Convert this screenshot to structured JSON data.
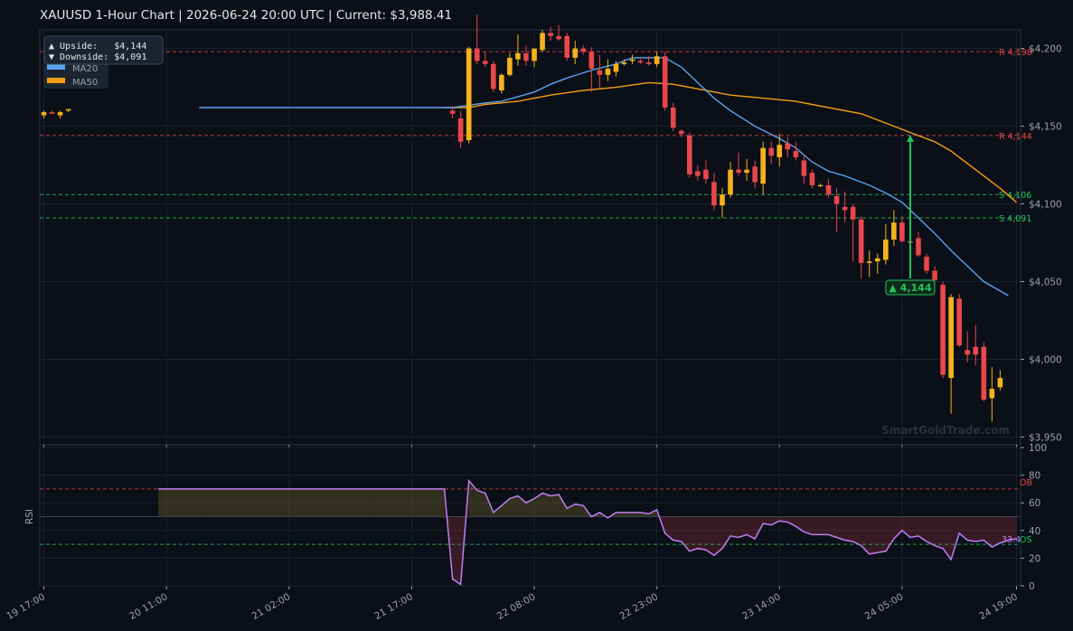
{
  "title": "XAUUSD  1-Hour Chart  |  2026-06-24 20:00 UTC  |  Current: $3,988.41",
  "watermark": "SmartGoldTrade.com",
  "colors": {
    "background": "#0b0f17",
    "bull": "#f5b21b",
    "bear": "#e8474c",
    "ma20": "#5aa2ef",
    "ma50": "#f59e16",
    "resistance": "#e0474c",
    "support": "#22c55e",
    "rsi": "#c07ef2",
    "grid": "#1b2230"
  },
  "info_box": {
    "upside": "▲ Upside:   $4,144",
    "downside": "▼ Downside: $4,091",
    "ma20_label": "MA20",
    "ma50_label": "MA50"
  },
  "annotation": "▲ 4,144",
  "chart_data": [
    {
      "type": "candlestick",
      "title": "XAUUSD  1-Hour Chart  |  2026-06-24 20:00 UTC  |  Current: $3,988.41",
      "ylim": [
        3945,
        4212
      ],
      "yticks": [
        3950,
        4000,
        4050,
        4100,
        4150,
        4200
      ],
      "ytick_labels": [
        "$3,950",
        "$4,000",
        "$4,050",
        "$4,100",
        "$4,150",
        "$4,200"
      ],
      "xlim": [
        -0.5,
        119.5
      ],
      "xticks": [
        0,
        15,
        30,
        45,
        60,
        75,
        90,
        105,
        119
      ],
      "xtick_labels": [
        "19 17:00",
        "20 11:00",
        "21 02:00",
        "21 17:00",
        "22 08:00",
        "22 23:00",
        "23 14:00",
        "24 05:00",
        "24 19:00"
      ],
      "levels": [
        {
          "kind": "resistance",
          "label": "R 4,198",
          "value": 4198
        },
        {
          "kind": "resistance",
          "label": "R 4,144",
          "value": 4144
        },
        {
          "kind": "support",
          "label": "S 4,106",
          "value": 4106
        },
        {
          "kind": "support",
          "label": "S 4,091",
          "value": 4091
        }
      ],
      "candles": [
        {
          "i": 0,
          "o": 4157,
          "h": 4160,
          "l": 4155,
          "c": 4159
        },
        {
          "i": 1,
          "o": 4159,
          "h": 4160,
          "l": 4158,
          "c": 4158
        },
        {
          "i": 2,
          "o": 4157,
          "h": 4160,
          "l": 4155,
          "c": 4159
        },
        {
          "i": 3,
          "o": 4160,
          "h": 4161,
          "l": 4159,
          "c": 4161
        },
        {
          "i": 50,
          "o": 4160,
          "h": 4163,
          "l": 4155,
          "c": 4158
        },
        {
          "i": 51,
          "o": 4155,
          "h": 4160,
          "l": 4136,
          "c": 4140
        },
        {
          "i": 52,
          "o": 4141,
          "h": 4201,
          "l": 4139,
          "c": 4200
        },
        {
          "i": 53,
          "o": 4200,
          "h": 4222,
          "l": 4190,
          "c": 4192
        },
        {
          "i": 54,
          "o": 4192,
          "h": 4198,
          "l": 4188,
          "c": 4190
        },
        {
          "i": 55,
          "o": 4190,
          "h": 4192,
          "l": 4172,
          "c": 4174
        },
        {
          "i": 56,
          "o": 4173,
          "h": 4184,
          "l": 4171,
          "c": 4183
        },
        {
          "i": 57,
          "o": 4183,
          "h": 4197,
          "l": 4182,
          "c": 4194
        },
        {
          "i": 58,
          "o": 4193,
          "h": 4209,
          "l": 4189,
          "c": 4197
        },
        {
          "i": 59,
          "o": 4197,
          "h": 4202,
          "l": 4189,
          "c": 4192
        },
        {
          "i": 60,
          "o": 4192,
          "h": 4200,
          "l": 4188,
          "c": 4200
        },
        {
          "i": 61,
          "o": 4199,
          "h": 4212,
          "l": 4198,
          "c": 4210
        },
        {
          "i": 62,
          "o": 4210,
          "h": 4214,
          "l": 4205,
          "c": 4208
        },
        {
          "i": 63,
          "o": 4208,
          "h": 4215,
          "l": 4205,
          "c": 4206
        },
        {
          "i": 64,
          "o": 4208,
          "h": 4210,
          "l": 4192,
          "c": 4194
        },
        {
          "i": 65,
          "o": 4194,
          "h": 4205,
          "l": 4190,
          "c": 4200
        },
        {
          "i": 66,
          "o": 4200,
          "h": 4202,
          "l": 4196,
          "c": 4198
        },
        {
          "i": 67,
          "o": 4198,
          "h": 4201,
          "l": 4172,
          "c": 4187
        },
        {
          "i": 68,
          "o": 4186,
          "h": 4196,
          "l": 4175,
          "c": 4183
        },
        {
          "i": 69,
          "o": 4183,
          "h": 4193,
          "l": 4179,
          "c": 4187
        },
        {
          "i": 70,
          "o": 4185,
          "h": 4192,
          "l": 4182,
          "c": 4190
        },
        {
          "i": 71,
          "o": 4190,
          "h": 4193,
          "l": 4189,
          "c": 4191
        },
        {
          "i": 72,
          "o": 4192,
          "h": 4196,
          "l": 4190,
          "c": 4193
        },
        {
          "i": 73,
          "o": 4192,
          "h": 4193,
          "l": 4190,
          "c": 4191
        },
        {
          "i": 74,
          "o": 4191,
          "h": 4195,
          "l": 4189,
          "c": 4190
        },
        {
          "i": 75,
          "o": 4190,
          "h": 4198,
          "l": 4188,
          "c": 4195
        },
        {
          "i": 76,
          "o": 4195,
          "h": 4198,
          "l": 4160,
          "c": 4162
        },
        {
          "i": 77,
          "o": 4162,
          "h": 4165,
          "l": 4147,
          "c": 4149
        },
        {
          "i": 78,
          "o": 4147,
          "h": 4148,
          "l": 4143,
          "c": 4145
        },
        {
          "i": 79,
          "o": 4144,
          "h": 4146,
          "l": 4117,
          "c": 4119
        },
        {
          "i": 80,
          "o": 4121,
          "h": 4125,
          "l": 4115,
          "c": 4118
        },
        {
          "i": 81,
          "o": 4122,
          "h": 4128,
          "l": 4113,
          "c": 4116
        },
        {
          "i": 82,
          "o": 4114,
          "h": 4120,
          "l": 4096,
          "c": 4099
        },
        {
          "i": 83,
          "o": 4099,
          "h": 4110,
          "l": 4091,
          "c": 4106
        },
        {
          "i": 84,
          "o": 4106,
          "h": 4127,
          "l": 4104,
          "c": 4122
        },
        {
          "i": 85,
          "o": 4122,
          "h": 4133,
          "l": 4118,
          "c": 4120
        },
        {
          "i": 86,
          "o": 4120,
          "h": 4129,
          "l": 4115,
          "c": 4122
        },
        {
          "i": 87,
          "o": 4124,
          "h": 4128,
          "l": 4110,
          "c": 4114
        },
        {
          "i": 88,
          "o": 4113,
          "h": 4140,
          "l": 4106,
          "c": 4136
        },
        {
          "i": 89,
          "o": 4136,
          "h": 4140,
          "l": 4126,
          "c": 4131
        },
        {
          "i": 90,
          "o": 4130,
          "h": 4145,
          "l": 4124,
          "c": 4138
        },
        {
          "i": 91,
          "o": 4139,
          "h": 4143,
          "l": 4130,
          "c": 4135
        },
        {
          "i": 92,
          "o": 4134,
          "h": 4140,
          "l": 4128,
          "c": 4130
        },
        {
          "i": 93,
          "o": 4128,
          "h": 4132,
          "l": 4113,
          "c": 4118
        },
        {
          "i": 94,
          "o": 4120,
          "h": 4122,
          "l": 4110,
          "c": 4112
        },
        {
          "i": 95,
          "o": 4112,
          "h": 4113,
          "l": 4111,
          "c": 4112
        },
        {
          "i": 96,
          "o": 4112,
          "h": 4116,
          "l": 4104,
          "c": 4106
        },
        {
          "i": 97,
          "o": 4105,
          "h": 4110,
          "l": 4082,
          "c": 4100
        },
        {
          "i": 98,
          "o": 4098,
          "h": 4108,
          "l": 4088,
          "c": 4096
        },
        {
          "i": 99,
          "o": 4098,
          "h": 4100,
          "l": 4063,
          "c": 4090
        },
        {
          "i": 100,
          "o": 4090,
          "h": 4092,
          "l": 4052,
          "c": 4062
        },
        {
          "i": 101,
          "o": 4062,
          "h": 4070,
          "l": 4053,
          "c": 4063
        },
        {
          "i": 102,
          "o": 4063,
          "h": 4068,
          "l": 4055,
          "c": 4065
        },
        {
          "i": 103,
          "o": 4064,
          "h": 4087,
          "l": 4061,
          "c": 4077
        },
        {
          "i": 104,
          "o": 4077,
          "h": 4096,
          "l": 4073,
          "c": 4088
        },
        {
          "i": 105,
          "o": 4088,
          "h": 4092,
          "l": 4075,
          "c": 4076
        },
        {
          "i": 106,
          "o": 4076,
          "h": 4078,
          "l": 4074,
          "c": 4075
        },
        {
          "i": 107,
          "o": 4078,
          "h": 4082,
          "l": 4066,
          "c": 4067
        },
        {
          "i": 108,
          "o": 4066,
          "h": 4068,
          "l": 4055,
          "c": 4057
        },
        {
          "i": 109,
          "o": 4057,
          "h": 4060,
          "l": 4050,
          "c": 4051
        },
        {
          "i": 110,
          "o": 4048,
          "h": 4050,
          "l": 3988,
          "c": 3990
        },
        {
          "i": 111,
          "o": 3988,
          "h": 4042,
          "l": 3965,
          "c": 4040
        },
        {
          "i": 112,
          "o": 4039,
          "h": 4042,
          "l": 4008,
          "c": 4009
        },
        {
          "i": 113,
          "o": 4006,
          "h": 4018,
          "l": 3998,
          "c": 4003
        },
        {
          "i": 114,
          "o": 4008,
          "h": 4022,
          "l": 3996,
          "c": 4003
        },
        {
          "i": 115,
          "o": 4008,
          "h": 4011,
          "l": 3973,
          "c": 3974
        },
        {
          "i": 116,
          "o": 3975,
          "h": 3995,
          "l": 3960,
          "c": 3981
        },
        {
          "i": 117,
          "o": 3982,
          "h": 3993,
          "l": 3980,
          "c": 3988
        }
      ],
      "ma20": {
        "name": "MA20",
        "points": [
          [
            19,
            4162
          ],
          [
            22,
            4162
          ],
          [
            35,
            4162
          ],
          [
            50,
            4162
          ],
          [
            54,
            4165
          ],
          [
            56,
            4166
          ],
          [
            60,
            4172
          ],
          [
            62,
            4177
          ],
          [
            64,
            4181
          ],
          [
            67,
            4186
          ],
          [
            70,
            4190
          ],
          [
            72,
            4194
          ],
          [
            76,
            4194
          ],
          [
            78,
            4188
          ],
          [
            80,
            4178
          ],
          [
            82,
            4168
          ],
          [
            84,
            4160
          ],
          [
            87,
            4150
          ],
          [
            90,
            4142
          ],
          [
            92,
            4136
          ],
          [
            94,
            4127
          ],
          [
            96,
            4121
          ],
          [
            98,
            4118
          ],
          [
            99,
            4116
          ],
          [
            101,
            4112
          ],
          [
            103,
            4107
          ],
          [
            105,
            4101
          ],
          [
            107,
            4091
          ],
          [
            109,
            4081
          ],
          [
            111,
            4070
          ],
          [
            113,
            4060
          ],
          [
            115,
            4050
          ],
          [
            118,
            4041
          ]
        ]
      },
      "ma50": {
        "name": "MA50",
        "points": [
          [
            49,
            4162
          ],
          [
            52,
            4162
          ],
          [
            54,
            4164
          ],
          [
            58,
            4166
          ],
          [
            62,
            4170
          ],
          [
            66,
            4173
          ],
          [
            70,
            4175
          ],
          [
            74,
            4178
          ],
          [
            77,
            4177
          ],
          [
            80,
            4174
          ],
          [
            84,
            4170
          ],
          [
            88,
            4168
          ],
          [
            92,
            4166
          ],
          [
            96,
            4162
          ],
          [
            100,
            4158
          ],
          [
            103,
            4152
          ],
          [
            106,
            4146
          ],
          [
            109,
            4140
          ],
          [
            111,
            4134
          ],
          [
            113,
            4126
          ],
          [
            115,
            4118
          ],
          [
            117,
            4110
          ],
          [
            119,
            4101
          ]
        ]
      },
      "arrow": {
        "x": 106,
        "from": 4052,
        "to": 4144,
        "label": "▲ 4,144"
      }
    },
    {
      "type": "line",
      "ylabel": "RSI",
      "ylim": [
        0,
        100
      ],
      "yticks": [
        0,
        20,
        40,
        60,
        80,
        100
      ],
      "ytick_labels": [
        "0",
        "20",
        "40",
        "60",
        "80",
        "100"
      ],
      "overbought": 70,
      "oversold": 30,
      "midline": 50,
      "ob_label": "OB",
      "os_label": "OS",
      "last_label": "33.4",
      "series": [
        {
          "points": [
            [
              14,
              70
            ],
            [
              20,
              70
            ],
            [
              30,
              70
            ],
            [
              40,
              70
            ],
            [
              49,
              70
            ],
            [
              50,
              5
            ],
            [
              51,
              1
            ],
            [
              52,
              76
            ],
            [
              53,
              69
            ],
            [
              54,
              67
            ],
            [
              55,
              53
            ],
            [
              56,
              58
            ],
            [
              57,
              63
            ],
            [
              58,
              65
            ],
            [
              59,
              60
            ],
            [
              60,
              63
            ],
            [
              61,
              67
            ],
            [
              62,
              65
            ],
            [
              63,
              66
            ],
            [
              64,
              56
            ],
            [
              65,
              59
            ],
            [
              66,
              58
            ],
            [
              67,
              50
            ],
            [
              68,
              53
            ],
            [
              69,
              49
            ],
            [
              70,
              53
            ],
            [
              71,
              53
            ],
            [
              72,
              53
            ],
            [
              73,
              53
            ],
            [
              74,
              52
            ],
            [
              75,
              55
            ],
            [
              76,
              38
            ],
            [
              77,
              33
            ],
            [
              78,
              32
            ],
            [
              79,
              25
            ],
            [
              80,
              27
            ],
            [
              81,
              26
            ],
            [
              82,
              22
            ],
            [
              83,
              27
            ],
            [
              84,
              36
            ],
            [
              85,
              35
            ],
            [
              86,
              37
            ],
            [
              87,
              34
            ],
            [
              88,
              45
            ],
            [
              89,
              44
            ],
            [
              90,
              47
            ],
            [
              91,
              46
            ],
            [
              92,
              43
            ],
            [
              93,
              39
            ],
            [
              94,
              37
            ],
            [
              95,
              37
            ],
            [
              96,
              37
            ],
            [
              97,
              35
            ],
            [
              98,
              33
            ],
            [
              99,
              32
            ],
            [
              100,
              29
            ],
            [
              101,
              23
            ],
            [
              102,
              24
            ],
            [
              103,
              25
            ],
            [
              104,
              34
            ],
            [
              105,
              40
            ],
            [
              106,
              35
            ],
            [
              107,
              36
            ],
            [
              108,
              32
            ],
            [
              109,
              29
            ],
            [
              110,
              27
            ],
            [
              111,
              19
            ],
            [
              112,
              38
            ],
            [
              113,
              33
            ],
            [
              114,
              32
            ],
            [
              115,
              33
            ],
            [
              116,
              28
            ],
            [
              117,
              31
            ],
            [
              118,
              33
            ],
            [
              119,
              34
            ]
          ]
        }
      ]
    }
  ]
}
